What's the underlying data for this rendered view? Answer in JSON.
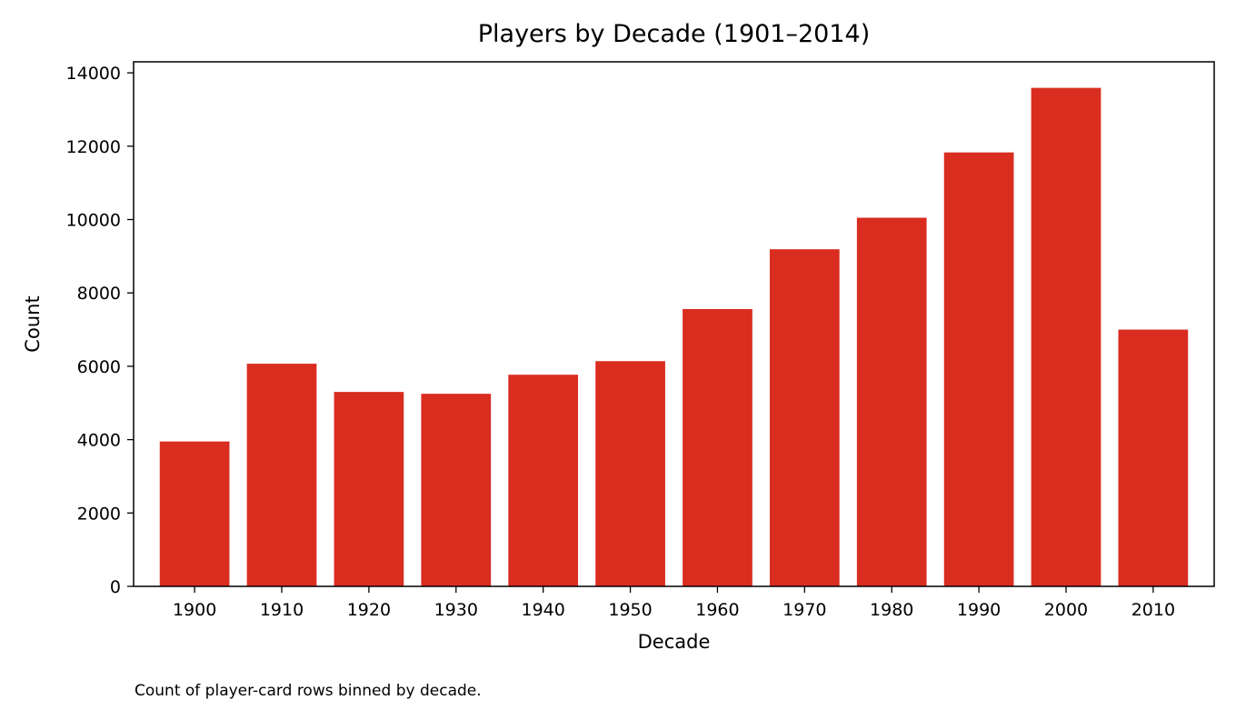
{
  "chart_data": {
    "type": "bar",
    "title": "Players by Decade (1901–2014)",
    "xlabel": "Decade",
    "ylabel": "Count",
    "categories": [
      "1900",
      "1910",
      "1920",
      "1930",
      "1940",
      "1950",
      "1960",
      "1970",
      "1980",
      "1990",
      "2000",
      "2010"
    ],
    "values": [
      3950,
      6070,
      5300,
      5250,
      5770,
      6140,
      7560,
      9190,
      10050,
      11830,
      13590,
      7000
    ],
    "yticks": [
      0,
      2000,
      4000,
      6000,
      8000,
      10000,
      12000,
      14000
    ],
    "ylim": [
      0,
      14300
    ],
    "bar_color": "#d92d20",
    "grid": false,
    "legend": "none",
    "caption": "Count of player-card rows binned by decade."
  }
}
